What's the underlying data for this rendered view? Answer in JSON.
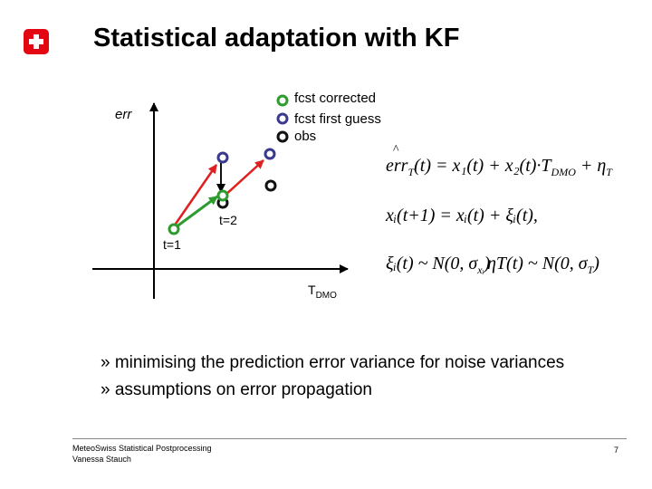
{
  "title": "Statistical adaptation with KF",
  "logo": {
    "icon": "swiss-cross-icon",
    "color": "#e30613"
  },
  "legend": [
    {
      "label": "fcst corrected",
      "color": "#2e9b2e"
    },
    {
      "label": "fcst first guess",
      "color": "#3a3a8c"
    },
    {
      "label": "obs",
      "color": "#111111"
    }
  ],
  "axis": {
    "y_label": "err",
    "x_label_main": "T",
    "x_label_sub": "DMO"
  },
  "points": {
    "t1_label": "t=1",
    "t2_label": "t=2"
  },
  "equations": {
    "eq1": {
      "lhs_hat": "^",
      "lhs": "err",
      "lhs_sub": "T",
      "rhs": "(t) = x₁(t) + x₂(t)·T",
      "rhs_sub": "DMO",
      "tail": " + η",
      "tail_sub": "T"
    },
    "eq2": "xᵢ(t+1) = xᵢ(t) + ξᵢ(t),",
    "eq3a": "ξᵢ(t) ~ N(0, σ",
    "eq3a_sub": "xᵢ",
    "eq3a_close": ")",
    "eq3b": "ηT(t) ~ N(0, σ",
    "eq3b_sub": "T",
    "eq3b_close": ")"
  },
  "bullets": [
    "» minimising the prediction error variance for noise variances",
    "» assumptions on error propagation"
  ],
  "footer": {
    "line1": "MeteoSwiss Statistical Postprocessing",
    "line2": "Vanessa Stauch",
    "page": "7"
  }
}
